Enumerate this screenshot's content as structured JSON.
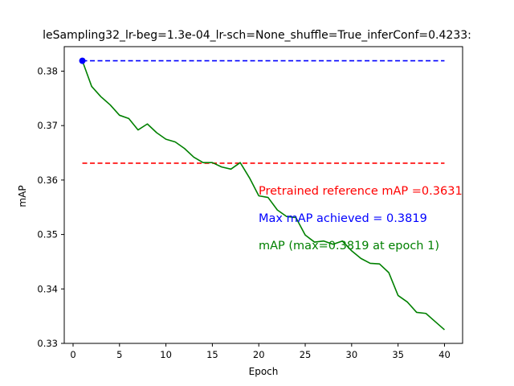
{
  "chart_data": {
    "type": "line",
    "title": "leSampling32_lr-beg=1.3e-04_lr-sch=None_shuffle=True_inferConf=0.4233:",
    "xlabel": "Epoch",
    "ylabel": "mAP",
    "xlim": [
      -0.95,
      41.95
    ],
    "ylim": [
      0.33,
      0.3845
    ],
    "xticks": [
      0,
      5,
      10,
      15,
      20,
      25,
      30,
      35,
      40
    ],
    "yticks": [
      0.33,
      0.34,
      0.35,
      0.36,
      0.37,
      0.38
    ],
    "grid": false,
    "series": [
      {
        "name": "mAP",
        "color": "#008000",
        "x": [
          1,
          2,
          3,
          4,
          5,
          6,
          7,
          8,
          9,
          10,
          11,
          12,
          13,
          14,
          15,
          16,
          17,
          18,
          19,
          20,
          21,
          22,
          23,
          24,
          25,
          26,
          27,
          28,
          29,
          30,
          31,
          32,
          33,
          34,
          35,
          36,
          37,
          38,
          39,
          40
        ],
        "y": [
          0.3819,
          0.3772,
          0.3753,
          0.3738,
          0.3719,
          0.3713,
          0.3692,
          0.3703,
          0.3687,
          0.3675,
          0.367,
          0.3658,
          0.3642,
          0.3632,
          0.3632,
          0.3624,
          0.362,
          0.3632,
          0.3604,
          0.3571,
          0.3568,
          0.3545,
          0.3533,
          0.3531,
          0.3499,
          0.3486,
          0.3488,
          0.3482,
          0.3488,
          0.347,
          0.3456,
          0.3447,
          0.3446,
          0.343,
          0.3388,
          0.3376,
          0.3357,
          0.3355,
          0.334,
          0.3325
        ]
      }
    ],
    "reference_lines": [
      {
        "name": "Max mAP achieved",
        "value": 0.3819,
        "x_from": 1,
        "x_to": 40,
        "color": "#0000ff",
        "style": "dashed"
      },
      {
        "name": "Pretrained reference mAP",
        "value": 0.3631,
        "x_from": 1,
        "x_to": 40,
        "color": "#ff0000",
        "style": "dashed"
      }
    ],
    "max_marker": {
      "x": 1,
      "y": 0.3819,
      "color": "#0000ff"
    },
    "annotations": [
      {
        "text": "Pretrained reference mAP =0.3631",
        "color": "#ff0000"
      },
      {
        "text": "Max mAP achieved = 0.3819",
        "color": "#0000ff"
      },
      {
        "text": "mAP (max=0.3819 at epoch 1)",
        "color": "#008000"
      }
    ]
  }
}
